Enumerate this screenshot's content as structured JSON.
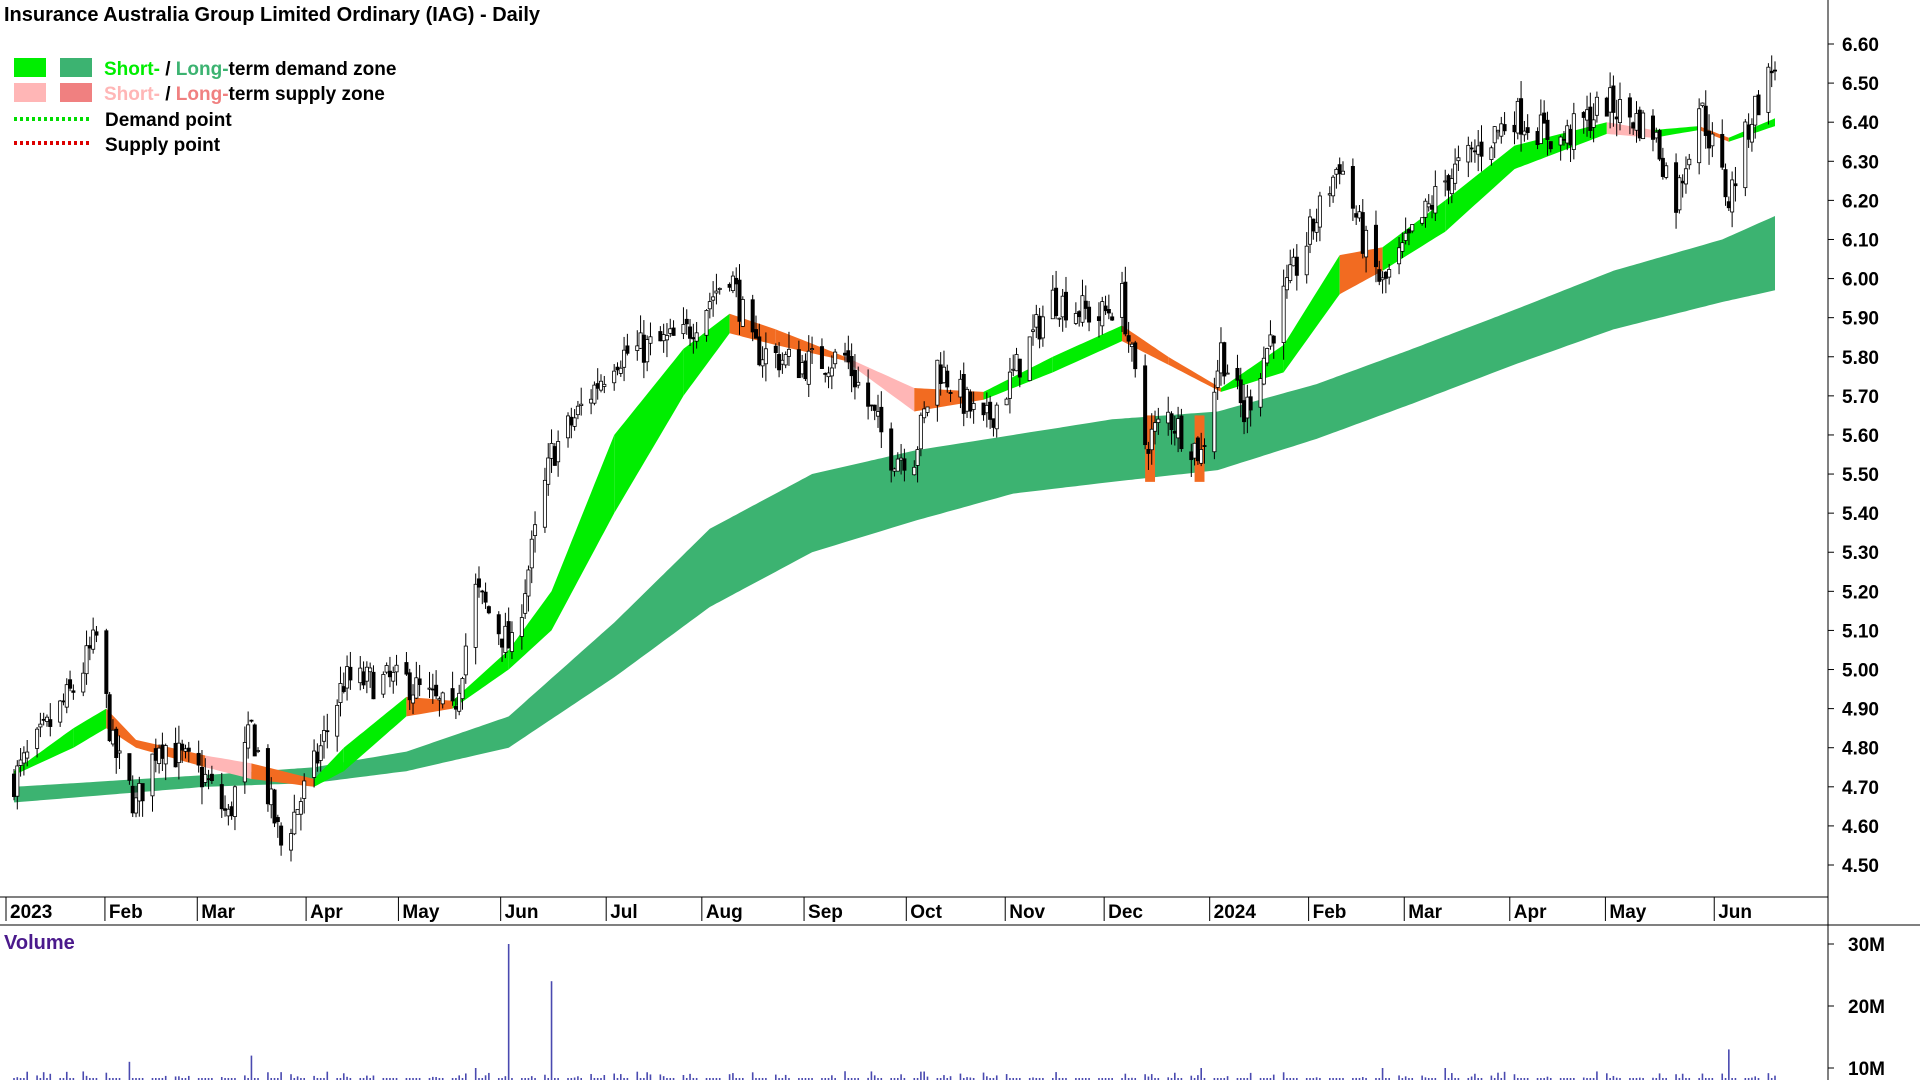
{
  "title": "Insurance Australia Group Limited Ordinary (IAG) - Daily",
  "legend": {
    "demand_zone": {
      "short": "Short-",
      "sep": " / ",
      "long": "Long-",
      "rest": "term demand zone"
    },
    "supply_zone": {
      "short": "Short-",
      "sep": " / ",
      "long": "Long-",
      "rest": "term supply zone"
    },
    "demand_point": "Demand point",
    "supply_point": "Supply point"
  },
  "colors": {
    "short_demand": "#00ee00",
    "long_demand": "#3cb371",
    "short_supply": "#ffb6b6",
    "long_supply": "#f08080",
    "supply_band": "#f26b21",
    "demand_point": "#00dd00",
    "supply_point": "#dd0000",
    "volume_bar": "#4a4ab0",
    "volume_label": "#4b1a8c"
  },
  "volume_panel": {
    "label": "Volume",
    "ticks": [
      "30M",
      "20M",
      "10M"
    ]
  },
  "chart_data": {
    "type": "candlestick",
    "title": "Insurance Australia Group Limited Ordinary (IAG) - Daily",
    "y_range": [
      4.4,
      6.64
    ],
    "y_ticks": [
      "6.60",
      "6.50",
      "6.40",
      "6.30",
      "6.20",
      "6.10",
      "6.00",
      "5.90",
      "5.80",
      "5.70",
      "5.60",
      "5.50",
      "5.40",
      "5.30",
      "5.20",
      "5.10",
      "5.00",
      "4.90",
      "4.80",
      "4.70",
      "4.60",
      "4.50"
    ],
    "x_labels": [
      "2023",
      "Feb",
      "Mar",
      "Apr",
      "May",
      "Jun",
      "Jul",
      "Aug",
      "Sep",
      "Oct",
      "Nov",
      "Dec",
      "2024",
      "Feb",
      "Mar",
      "Apr",
      "May",
      "Jun"
    ],
    "price_path": [
      {
        "date": "2023-01-02",
        "price": 4.72
      },
      {
        "date": "2023-01-20",
        "price": 4.95
      },
      {
        "date": "2023-01-27",
        "price": 5.08
      },
      {
        "date": "2023-02-01",
        "price": 4.8
      },
      {
        "date": "2023-02-08",
        "price": 4.65
      },
      {
        "date": "2023-02-15",
        "price": 4.82
      },
      {
        "date": "2023-03-01",
        "price": 4.72
      },
      {
        "date": "2023-03-08",
        "price": 4.62
      },
      {
        "date": "2023-03-15",
        "price": 4.85
      },
      {
        "date": "2023-03-24",
        "price": 4.55
      },
      {
        "date": "2023-04-03",
        "price": 4.75
      },
      {
        "date": "2023-04-12",
        "price": 4.97
      },
      {
        "date": "2023-05-01",
        "price": 4.97
      },
      {
        "date": "2023-05-15",
        "price": 4.88
      },
      {
        "date": "2023-05-22",
        "price": 5.2
      },
      {
        "date": "2023-06-02",
        "price": 5.05
      },
      {
        "date": "2023-06-14",
        "price": 5.55
      },
      {
        "date": "2023-07-03",
        "price": 5.8
      },
      {
        "date": "2023-07-24",
        "price": 5.85
      },
      {
        "date": "2023-08-07",
        "price": 6.02
      },
      {
        "date": "2023-08-14",
        "price": 5.82
      },
      {
        "date": "2023-08-28",
        "price": 5.78
      },
      {
        "date": "2023-09-11",
        "price": 5.8
      },
      {
        "date": "2023-09-25",
        "price": 5.55
      },
      {
        "date": "2023-10-02",
        "price": 5.55
      },
      {
        "date": "2023-10-09",
        "price": 5.78
      },
      {
        "date": "2023-10-23",
        "price": 5.62
      },
      {
        "date": "2023-10-30",
        "price": 5.72
      },
      {
        "date": "2023-11-13",
        "price": 5.95
      },
      {
        "date": "2023-11-27",
        "price": 5.9
      },
      {
        "date": "2023-12-04",
        "price": 5.95
      },
      {
        "date": "2023-12-11",
        "price": 5.58
      },
      {
        "date": "2023-12-18",
        "price": 5.65
      },
      {
        "date": "2023-12-28",
        "price": 5.55
      },
      {
        "date": "2024-01-03",
        "price": 5.82
      },
      {
        "date": "2024-01-10",
        "price": 5.65
      },
      {
        "date": "2024-01-22",
        "price": 5.95
      },
      {
        "date": "2024-02-08",
        "price": 6.3
      },
      {
        "date": "2024-02-15",
        "price": 6.1
      },
      {
        "date": "2024-02-21",
        "price": 5.98
      },
      {
        "date": "2024-03-11",
        "price": 6.25
      },
      {
        "date": "2024-04-01",
        "price": 6.42
      },
      {
        "date": "2024-04-15",
        "price": 6.35
      },
      {
        "date": "2024-04-29",
        "price": 6.45
      },
      {
        "date": "2024-05-13",
        "price": 6.38
      },
      {
        "date": "2024-05-20",
        "price": 6.2
      },
      {
        "date": "2024-05-27",
        "price": 6.45
      },
      {
        "date": "2024-06-05",
        "price": 6.2
      },
      {
        "date": "2024-06-12",
        "price": 6.42
      },
      {
        "date": "2024-06-19",
        "price": 6.55
      }
    ],
    "long_term_zone": [
      {
        "date": "2023-01-02",
        "upper": 4.7,
        "lower": 4.66
      },
      {
        "date": "2023-03-01",
        "upper": 4.73,
        "lower": 4.7
      },
      {
        "date": "2023-04-03",
        "upper": 4.75,
        "lower": 4.71
      },
      {
        "date": "2023-05-01",
        "upper": 4.79,
        "lower": 4.74
      },
      {
        "date": "2023-06-01",
        "upper": 4.88,
        "lower": 4.8
      },
      {
        "date": "2023-07-03",
        "upper": 5.12,
        "lower": 4.98
      },
      {
        "date": "2023-08-01",
        "upper": 5.36,
        "lower": 5.16
      },
      {
        "date": "2023-09-01",
        "upper": 5.5,
        "lower": 5.3
      },
      {
        "date": "2023-10-02",
        "upper": 5.56,
        "lower": 5.38
      },
      {
        "date": "2023-11-01",
        "upper": 5.6,
        "lower": 5.45
      },
      {
        "date": "2023-12-01",
        "upper": 5.64,
        "lower": 5.48
      },
      {
        "date": "2024-01-02",
        "upper": 5.66,
        "lower": 5.51
      },
      {
        "date": "2024-02-01",
        "upper": 5.73,
        "lower": 5.59
      },
      {
        "date": "2024-03-01",
        "upper": 5.82,
        "lower": 5.68
      },
      {
        "date": "2024-04-01",
        "upper": 5.92,
        "lower": 5.78
      },
      {
        "date": "2024-05-01",
        "upper": 6.02,
        "lower": 5.87
      },
      {
        "date": "2024-06-03",
        "upper": 6.1,
        "lower": 5.94
      },
      {
        "date": "2024-06-19",
        "upper": 6.16,
        "lower": 5.97
      }
    ],
    "short_term_zone": [
      {
        "date": "2023-01-02",
        "upper": 4.74,
        "lower": 4.73,
        "state": "supply"
      },
      {
        "date": "2023-01-20",
        "upper": 4.85,
        "lower": 4.8,
        "state": "demand"
      },
      {
        "date": "2023-01-30",
        "upper": 4.9,
        "lower": 4.85,
        "state": "demand"
      },
      {
        "date": "2023-02-08",
        "upper": 4.82,
        "lower": 4.8,
        "state": "supply"
      },
      {
        "date": "2023-03-01",
        "upper": 4.78,
        "lower": 4.75,
        "state": "supply"
      },
      {
        "date": "2023-03-15",
        "upper": 4.76,
        "lower": 4.72,
        "state": "supply"
      },
      {
        "date": "2023-04-03",
        "upper": 4.72,
        "lower": 4.7,
        "state": "supply"
      },
      {
        "date": "2023-04-12",
        "upper": 4.8,
        "lower": 4.74,
        "state": "demand"
      },
      {
        "date": "2023-05-01",
        "upper": 4.93,
        "lower": 4.88,
        "state": "demand"
      },
      {
        "date": "2023-05-15",
        "upper": 4.92,
        "lower": 4.9,
        "state": "supply"
      },
      {
        "date": "2023-06-01",
        "upper": 5.05,
        "lower": 5.0,
        "state": "demand"
      },
      {
        "date": "2023-06-14",
        "upper": 5.2,
        "lower": 5.1,
        "state": "demand"
      },
      {
        "date": "2023-07-03",
        "upper": 5.6,
        "lower": 5.4,
        "state": "demand"
      },
      {
        "date": "2023-07-24",
        "upper": 5.82,
        "lower": 5.7,
        "state": "demand"
      },
      {
        "date": "2023-08-07",
        "upper": 5.91,
        "lower": 5.86,
        "state": "demand"
      },
      {
        "date": "2023-08-21",
        "upper": 5.87,
        "lower": 5.83,
        "state": "supply"
      },
      {
        "date": "2023-09-11",
        "upper": 5.8,
        "lower": 5.79,
        "state": "supply"
      },
      {
        "date": "2023-10-02",
        "upper": 5.72,
        "lower": 5.66,
        "state": "supply"
      },
      {
        "date": "2023-10-23",
        "upper": 5.71,
        "lower": 5.69,
        "state": "supply"
      },
      {
        "date": "2023-11-13",
        "upper": 5.8,
        "lower": 5.76,
        "state": "demand"
      },
      {
        "date": "2023-12-04",
        "upper": 5.88,
        "lower": 5.84,
        "state": "demand"
      },
      {
        "date": "2023-12-18",
        "upper": 5.8,
        "lower": 5.78,
        "state": "supply"
      },
      {
        "date": "2024-01-03",
        "upper": 5.72,
        "lower": 5.71,
        "state": "supply"
      },
      {
        "date": "2024-01-22",
        "upper": 5.83,
        "lower": 5.76,
        "state": "demand"
      },
      {
        "date": "2024-02-08",
        "upper": 6.06,
        "lower": 5.96,
        "state": "demand"
      },
      {
        "date": "2024-02-21",
        "upper": 6.08,
        "lower": 6.02,
        "state": "supply"
      },
      {
        "date": "2024-03-11",
        "upper": 6.2,
        "lower": 6.12,
        "state": "demand"
      },
      {
        "date": "2024-04-01",
        "upper": 6.34,
        "lower": 6.28,
        "state": "demand"
      },
      {
        "date": "2024-04-29",
        "upper": 6.4,
        "lower": 6.37,
        "state": "demand"
      },
      {
        "date": "2024-05-13",
        "upper": 6.38,
        "lower": 6.36,
        "state": "supply"
      },
      {
        "date": "2024-05-27",
        "upper": 6.39,
        "lower": 6.38,
        "state": "demand"
      },
      {
        "date": "2024-06-05",
        "upper": 6.36,
        "lower": 6.35,
        "state": "supply"
      },
      {
        "date": "2024-06-19",
        "upper": 6.41,
        "lower": 6.39,
        "state": "demand"
      }
    ],
    "volume": {
      "unit": "M",
      "ylim": [
        0,
        32
      ],
      "baseline": 5,
      "spikes": [
        {
          "date": "2023-02-06",
          "value": 11
        },
        {
          "date": "2023-03-15",
          "value": 12
        },
        {
          "date": "2023-05-22",
          "value": 10
        },
        {
          "date": "2023-06-01",
          "value": 30
        },
        {
          "date": "2023-06-14",
          "value": 24
        },
        {
          "date": "2023-08-07",
          "value": 9
        },
        {
          "date": "2023-12-11",
          "value": 9
        },
        {
          "date": "2023-12-28",
          "value": 10
        },
        {
          "date": "2024-02-21",
          "value": 10
        },
        {
          "date": "2024-03-11",
          "value": 10
        },
        {
          "date": "2024-05-20",
          "value": 9
        },
        {
          "date": "2024-06-05",
          "value": 13
        }
      ]
    }
  }
}
